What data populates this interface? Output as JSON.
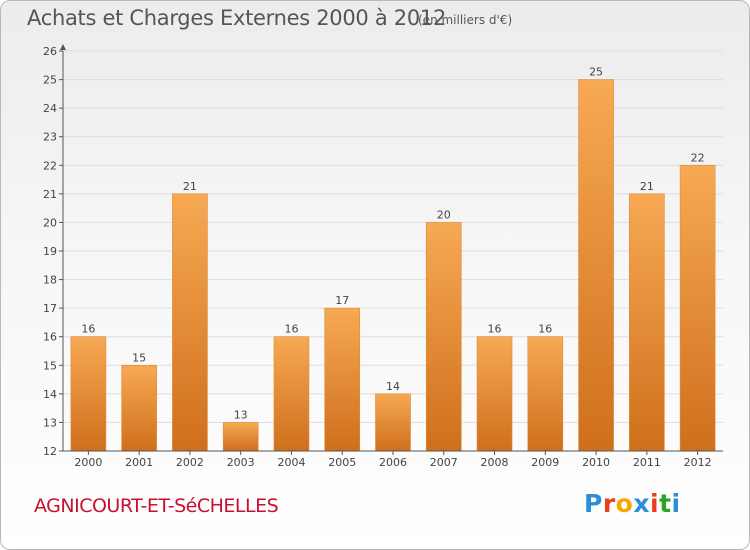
{
  "header": {
    "title": "Achats et Charges Externes 2000 à 2012",
    "unit": "(en milliers d'€)"
  },
  "footer": {
    "commune": "AGNICOURT-ET-SéCHELLES",
    "logo_text": "Proxiti",
    "logo_colors": [
      "#2a8fd6",
      "#e8401c",
      "#f6a800",
      "#2a8fd6",
      "#e8401c",
      "#2aa52a",
      "#2a8fd6"
    ]
  },
  "colors": {
    "bar_top": "#f7a953",
    "bar_bottom": "#cf6f1c",
    "axis": "#555555",
    "grid": "#dddddd",
    "label": "#444444"
  },
  "chart_data": {
    "type": "bar",
    "title": "Achats et Charges Externes 2000 à 2012",
    "subtitle": "(en milliers d'€)",
    "categories": [
      "2000",
      "2001",
      "2002",
      "2003",
      "2004",
      "2005",
      "2006",
      "2007",
      "2008",
      "2009",
      "2010",
      "2011",
      "2012"
    ],
    "values": [
      16,
      15,
      21,
      13,
      16,
      17,
      14,
      20,
      16,
      16,
      25,
      21,
      22
    ],
    "ylim": [
      12,
      26
    ],
    "yticks": [
      12,
      13,
      14,
      15,
      16,
      17,
      18,
      19,
      20,
      21,
      22,
      23,
      24,
      25,
      26
    ],
    "grid": true,
    "data_labels": true
  }
}
